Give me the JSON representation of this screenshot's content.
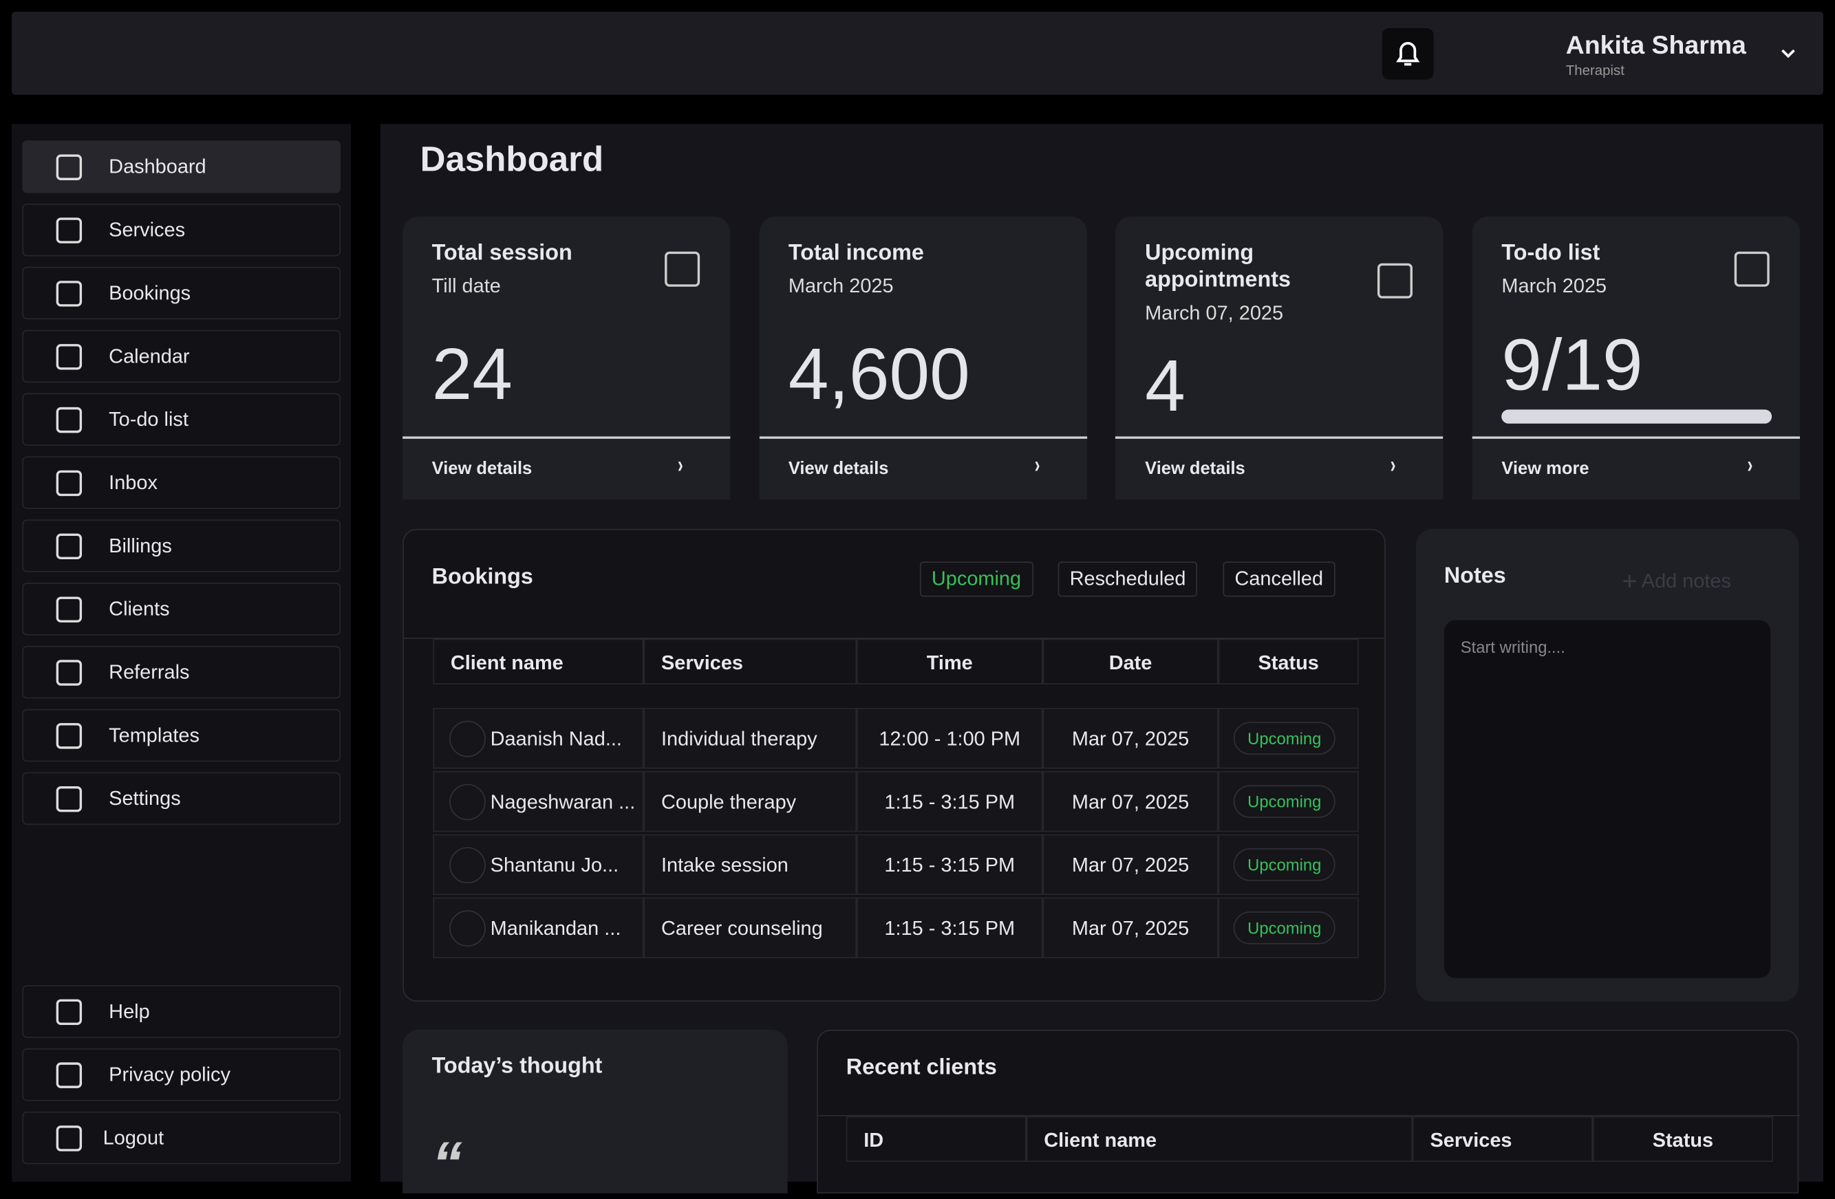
{
  "header": {
    "user_name": "Ankita Sharma",
    "user_role": "Therapist"
  },
  "sidebar": {
    "items": [
      "Dashboard",
      "Services",
      "Bookings",
      "Calendar",
      "To-do list",
      "Inbox",
      "Billings",
      "Clients",
      "Referrals",
      "Templates",
      "Settings"
    ],
    "bottom_items": [
      "Help",
      "Privacy policy",
      "Logout"
    ]
  },
  "page_title": "Dashboard",
  "cards": [
    {
      "title": "Total session",
      "subtitle": "Till date",
      "value": "24",
      "link": "View details"
    },
    {
      "title": "Total income",
      "subtitle": "March 2025",
      "value": "4,600",
      "link": "View details"
    },
    {
      "title": "Upcoming appointments",
      "subtitle": "March 07,  2025",
      "value": "4",
      "link": "View details"
    },
    {
      "title": "To-do list",
      "subtitle": "March 2025",
      "value": "9/19",
      "link": "View more"
    }
  ],
  "bookings": {
    "title": "Bookings",
    "tabs": [
      "Upcoming",
      "Rescheduled",
      "Cancelled"
    ],
    "columns": [
      "Client name",
      "Services",
      "Time",
      "Date",
      "Status"
    ],
    "rows": [
      [
        "Daanish Nad...",
        "Individual therapy",
        "12:00 - 1:00 PM",
        "Mar 07, 2025",
        "Upcoming"
      ],
      [
        "Nageshwaran ...",
        "Couple therapy",
        "1:15 - 3:15 PM",
        "Mar 07, 2025",
        "Upcoming"
      ],
      [
        "Shantanu Jo...",
        "Intake session",
        "1:15 - 3:15 PM",
        "Mar 07, 2025",
        "Upcoming"
      ],
      [
        "Manikandan ...",
        "Career counseling",
        "1:15 - 3:15 PM",
        "Mar 07, 2025",
        "Upcoming"
      ]
    ]
  },
  "notes": {
    "title": "Notes",
    "add": "Add notes",
    "placeholder": "Start writing...."
  },
  "thought": {
    "title": "Today’s thought",
    "quote": "“"
  },
  "recent_clients": {
    "title": "Recent clients",
    "columns": [
      "ID",
      "Client name",
      "Services",
      "Status"
    ]
  }
}
